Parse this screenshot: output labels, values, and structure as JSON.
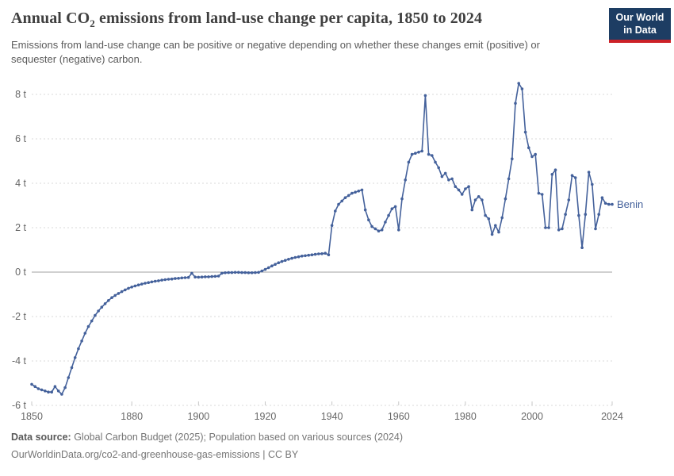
{
  "title": {
    "prefix": "Annual CO",
    "subscript": "2",
    "suffix": " emissions from land-use change per capita, 1850 to 2024"
  },
  "subtitle": "Emissions from land-use change can be positive or negative depending on whether these changes emit (positive) or sequester (negative) carbon.",
  "logo": {
    "line1": "Our World",
    "line2": "in Data"
  },
  "footer": {
    "source_label": "Data source:",
    "source_text": " Global Carbon Budget (2025); Population based on various sources (2024)",
    "url_line": "OurWorldinData.org/co2-and-greenhouse-gas-emissions | CC BY"
  },
  "colors": {
    "line": "#44619b",
    "series_label": "#44619b",
    "grid": "#dadada",
    "zero_line": "#a0a0a0",
    "axis_text": "#666666",
    "tick_mark": "#c8c8c8",
    "logo_bg": "#1d3d63",
    "logo_red": "#cc2128"
  },
  "chart_data": {
    "type": "line",
    "title": "Annual CO2 emissions from land-use change per capita, 1850 to 2024",
    "xlabel": "",
    "ylabel": "",
    "unit": "t",
    "x_range": [
      1850,
      2024
    ],
    "x_step": 1,
    "ylim": [
      -6,
      8.5
    ],
    "grid": "horizontal-dashed",
    "legend": "end-of-line-label",
    "zero_line": true,
    "markers": true,
    "yticks": [
      {
        "value": 8,
        "label": "8 t"
      },
      {
        "value": 6,
        "label": "6 t"
      },
      {
        "value": 4,
        "label": "4 t"
      },
      {
        "value": 2,
        "label": "2 t"
      },
      {
        "value": 0,
        "label": "0 t"
      },
      {
        "value": -2,
        "label": "-2 t"
      },
      {
        "value": -4,
        "label": "-4 t"
      },
      {
        "value": -6,
        "label": "-6 t"
      }
    ],
    "xticks": [
      {
        "value": 1850,
        "label": "1850"
      },
      {
        "value": 1880,
        "label": "1880"
      },
      {
        "value": 1900,
        "label": "1900"
      },
      {
        "value": 1920,
        "label": "1920"
      },
      {
        "value": 1940,
        "label": "1940"
      },
      {
        "value": 1960,
        "label": "1960"
      },
      {
        "value": 1980,
        "label": "1980"
      },
      {
        "value": 2000,
        "label": "2000"
      },
      {
        "value": 2024,
        "label": "2024"
      }
    ],
    "series": [
      {
        "name": "Benin",
        "color": "#44619b",
        "values": [
          -5.05,
          -5.15,
          -5.25,
          -5.3,
          -5.35,
          -5.4,
          -5.4,
          -5.15,
          -5.35,
          -5.5,
          -5.2,
          -4.75,
          -4.3,
          -3.85,
          -3.45,
          -3.1,
          -2.75,
          -2.45,
          -2.2,
          -1.95,
          -1.75,
          -1.58,
          -1.42,
          -1.28,
          -1.15,
          -1.05,
          -0.96,
          -0.88,
          -0.8,
          -0.73,
          -0.67,
          -0.62,
          -0.58,
          -0.54,
          -0.5,
          -0.47,
          -0.44,
          -0.41,
          -0.39,
          -0.36,
          -0.34,
          -0.32,
          -0.31,
          -0.29,
          -0.28,
          -0.26,
          -0.25,
          -0.24,
          -0.05,
          -0.22,
          -0.23,
          -0.22,
          -0.21,
          -0.21,
          -0.2,
          -0.19,
          -0.18,
          -0.05,
          -0.03,
          -0.02,
          -0.02,
          -0.01,
          -0.01,
          -0.02,
          -0.02,
          -0.03,
          -0.03,
          -0.02,
          -0.01,
          0.05,
          0.12,
          0.2,
          0.28,
          0.35,
          0.42,
          0.48,
          0.53,
          0.58,
          0.62,
          0.66,
          0.69,
          0.72,
          0.74,
          0.76,
          0.78,
          0.8,
          0.82,
          0.83,
          0.85,
          0.78,
          2.1,
          2.75,
          3.05,
          3.2,
          3.35,
          3.45,
          3.55,
          3.6,
          3.65,
          3.7,
          2.8,
          2.35,
          2.05,
          1.95,
          1.85,
          1.9,
          2.25,
          2.55,
          2.85,
          2.95,
          1.9,
          3.3,
          4.15,
          4.95,
          5.3,
          5.35,
          5.4,
          5.45,
          7.95,
          5.3,
          5.25,
          4.95,
          4.7,
          4.3,
          4.45,
          4.15,
          4.2,
          3.85,
          3.7,
          3.5,
          3.75,
          3.85,
          2.8,
          3.25,
          3.4,
          3.25,
          2.55,
          2.4,
          1.7,
          2.1,
          1.8,
          2.45,
          3.3,
          4.2,
          5.1,
          7.6,
          8.5,
          8.25,
          6.3,
          5.6,
          5.2,
          5.3,
          3.55,
          3.5,
          2.0,
          2.0,
          4.4,
          4.6,
          1.9,
          1.95,
          2.6,
          3.25,
          4.35,
          4.25,
          2.55,
          1.1,
          2.6,
          4.5,
          3.95,
          1.95,
          2.6,
          3.35,
          3.1,
          3.05,
          3.05
        ]
      }
    ]
  }
}
